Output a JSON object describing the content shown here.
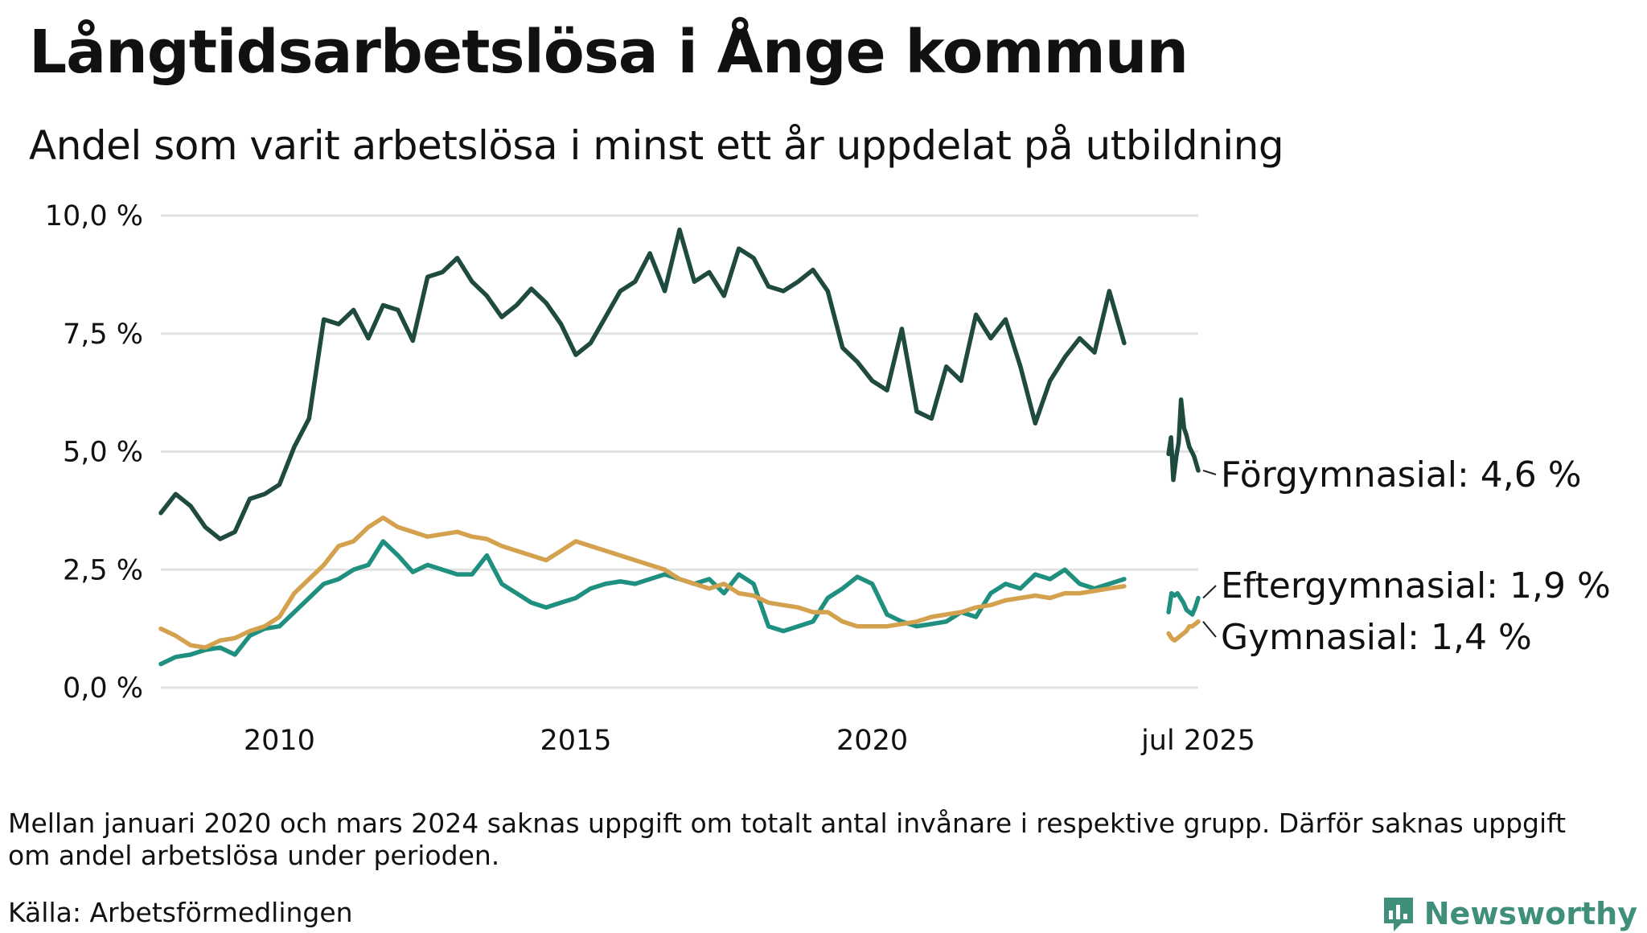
{
  "title": "Långtidsarbetslösa i Ånge kommun",
  "subtitle": "Andel som varit arbetslösa i minst ett år uppdelat på utbildning",
  "footnote": "Mellan januari 2020 och mars 2024 saknas uppgift om totalt antal invånare i respektive grupp. Därför saknas uppgift om andel arbetslösa under perioden.",
  "source": "Källa: Arbetsförmedlingen",
  "brand": "Newsworthy",
  "colors": {
    "forgymnasial": "#1f4a40",
    "eftergymnasial": "#1f9080",
    "gymnasial": "#d4a24e",
    "grid": "#e2e2e2",
    "brand": "#3f8f7a"
  },
  "chart_data": {
    "type": "line",
    "title": "Långtidsarbetslösa i Ånge kommun",
    "subtitle": "Andel som varit arbetslösa i minst ett år uppdelat på utbildning",
    "xlabel": "",
    "ylabel": "",
    "ylim": [
      0,
      10
    ],
    "xlim": [
      2008.0,
      2025.5
    ],
    "y_ticks": [
      {
        "value": 0,
        "label": "0,0 %"
      },
      {
        "value": 2.5,
        "label": "2,5 %"
      },
      {
        "value": 5,
        "label": "5,0 %"
      },
      {
        "value": 7.5,
        "label": "7,5 %"
      },
      {
        "value": 10,
        "label": "10,0 %"
      }
    ],
    "x_ticks": [
      {
        "value": 2010,
        "label": "2010"
      },
      {
        "value": 2015,
        "label": "2015"
      },
      {
        "value": 2020,
        "label": "2020"
      },
      {
        "value": 2025.5,
        "label": "jul 2025"
      }
    ],
    "grid": true,
    "legend": "end-of-line labels",
    "series": [
      {
        "name": "Förgymnasial",
        "end_label": "Förgymnasial: 4,6 %",
        "color": "#1f4a40",
        "segments": [
          [
            [
              2008.0,
              3.7
            ],
            [
              2008.25,
              4.1
            ],
            [
              2008.5,
              3.85
            ],
            [
              2008.75,
              3.4
            ],
            [
              2009.0,
              3.15
            ],
            [
              2009.25,
              3.3
            ],
            [
              2009.5,
              4.0
            ],
            [
              2009.75,
              4.1
            ],
            [
              2010.0,
              4.3
            ],
            [
              2010.25,
              5.1
            ],
            [
              2010.5,
              5.7
            ],
            [
              2010.75,
              7.8
            ],
            [
              2011.0,
              7.7
            ],
            [
              2011.25,
              8.0
            ],
            [
              2011.5,
              7.4
            ],
            [
              2011.75,
              8.1
            ],
            [
              2012.0,
              8.0
            ],
            [
              2012.25,
              7.35
            ],
            [
              2012.5,
              8.7
            ],
            [
              2012.75,
              8.8
            ],
            [
              2013.0,
              9.1
            ],
            [
              2013.25,
              8.6
            ],
            [
              2013.5,
              8.3
            ],
            [
              2013.75,
              7.85
            ],
            [
              2014.0,
              8.1
            ],
            [
              2014.25,
              8.45
            ],
            [
              2014.5,
              8.15
            ],
            [
              2014.75,
              7.7
            ],
            [
              2015.0,
              7.05
            ],
            [
              2015.25,
              7.3
            ],
            [
              2015.5,
              7.85
            ],
            [
              2015.75,
              8.4
            ],
            [
              2016.0,
              8.6
            ],
            [
              2016.25,
              9.2
            ],
            [
              2016.5,
              8.4
            ],
            [
              2016.75,
              9.7
            ],
            [
              2017.0,
              8.6
            ],
            [
              2017.25,
              8.8
            ],
            [
              2017.5,
              8.3
            ],
            [
              2017.75,
              9.3
            ],
            [
              2018.0,
              9.1
            ],
            [
              2018.25,
              8.5
            ],
            [
              2018.5,
              8.4
            ],
            [
              2018.75,
              8.6
            ],
            [
              2019.0,
              8.85
            ],
            [
              2019.25,
              8.4
            ],
            [
              2019.5,
              7.2
            ],
            [
              2019.75,
              6.9
            ],
            [
              2020.0,
              6.5
            ],
            [
              2020.25,
              6.3
            ],
            [
              2020.5,
              7.6
            ],
            [
              2020.75,
              5.85
            ],
            [
              2021.0,
              5.7
            ],
            [
              2021.25,
              6.8
            ],
            [
              2021.5,
              6.5
            ],
            [
              2021.75,
              7.9
            ],
            [
              2022.0,
              7.4
            ],
            [
              2022.25,
              7.8
            ],
            [
              2022.5,
              6.8
            ],
            [
              2022.75,
              5.6
            ],
            [
              2023.0,
              6.5
            ],
            [
              2023.25,
              7.0
            ],
            [
              2023.5,
              7.4
            ],
            [
              2023.75,
              7.1
            ],
            [
              2024.0,
              8.4
            ],
            [
              2024.25,
              7.3
            ]
          ],
          [
            [
              2025.0,
              4.95
            ],
            [
              2025.04,
              5.3
            ],
            [
              2025.08,
              4.4
            ],
            [
              2025.13,
              4.9
            ],
            [
              2025.17,
              5.2
            ],
            [
              2025.21,
              6.1
            ],
            [
              2025.26,
              5.5
            ],
            [
              2025.3,
              5.35
            ],
            [
              2025.35,
              5.1
            ],
            [
              2025.39,
              5.0
            ],
            [
              2025.43,
              4.9
            ],
            [
              2025.5,
              4.6
            ]
          ]
        ]
      },
      {
        "name": "Eftergymnasial",
        "end_label": "Eftergymnasial: 1,9 %",
        "color": "#1f9080",
        "segments": [
          [
            [
              2008.0,
              0.5
            ],
            [
              2008.25,
              0.65
            ],
            [
              2008.5,
              0.7
            ],
            [
              2008.75,
              0.8
            ],
            [
              2009.0,
              0.85
            ],
            [
              2009.25,
              0.7
            ],
            [
              2009.5,
              1.1
            ],
            [
              2009.75,
              1.25
            ],
            [
              2010.0,
              1.3
            ],
            [
              2010.25,
              1.6
            ],
            [
              2010.5,
              1.9
            ],
            [
              2010.75,
              2.2
            ],
            [
              2011.0,
              2.3
            ],
            [
              2011.25,
              2.5
            ],
            [
              2011.5,
              2.6
            ],
            [
              2011.75,
              3.1
            ],
            [
              2012.0,
              2.8
            ],
            [
              2012.25,
              2.45
            ],
            [
              2012.5,
              2.6
            ],
            [
              2012.75,
              2.5
            ],
            [
              2013.0,
              2.4
            ],
            [
              2013.25,
              2.4
            ],
            [
              2013.5,
              2.8
            ],
            [
              2013.75,
              2.2
            ],
            [
              2014.0,
              2.0
            ],
            [
              2014.25,
              1.8
            ],
            [
              2014.5,
              1.7
            ],
            [
              2014.75,
              1.8
            ],
            [
              2015.0,
              1.9
            ],
            [
              2015.25,
              2.1
            ],
            [
              2015.5,
              2.2
            ],
            [
              2015.75,
              2.25
            ],
            [
              2016.0,
              2.2
            ],
            [
              2016.25,
              2.3
            ],
            [
              2016.5,
              2.4
            ],
            [
              2016.75,
              2.3
            ],
            [
              2017.0,
              2.2
            ],
            [
              2017.25,
              2.3
            ],
            [
              2017.5,
              2.0
            ],
            [
              2017.75,
              2.4
            ],
            [
              2018.0,
              2.2
            ],
            [
              2018.25,
              1.3
            ],
            [
              2018.5,
              1.2
            ],
            [
              2018.75,
              1.3
            ],
            [
              2019.0,
              1.4
            ],
            [
              2019.25,
              1.9
            ],
            [
              2019.5,
              2.1
            ],
            [
              2019.75,
              2.35
            ],
            [
              2020.0,
              2.2
            ],
            [
              2020.25,
              1.55
            ],
            [
              2020.5,
              1.4
            ],
            [
              2020.75,
              1.3
            ],
            [
              2021.0,
              1.35
            ],
            [
              2021.25,
              1.4
            ],
            [
              2021.5,
              1.6
            ],
            [
              2021.75,
              1.5
            ],
            [
              2022.0,
              2.0
            ],
            [
              2022.25,
              2.2
            ],
            [
              2022.5,
              2.1
            ],
            [
              2022.75,
              2.4
            ],
            [
              2023.0,
              2.3
            ],
            [
              2023.25,
              2.5
            ],
            [
              2023.5,
              2.2
            ],
            [
              2023.75,
              2.1
            ],
            [
              2024.0,
              2.2
            ],
            [
              2024.25,
              2.3
            ]
          ],
          [
            [
              2025.0,
              1.6
            ],
            [
              2025.05,
              2.0
            ],
            [
              2025.1,
              1.95
            ],
            [
              2025.15,
              2.0
            ],
            [
              2025.2,
              1.9
            ],
            [
              2025.25,
              1.8
            ],
            [
              2025.3,
              1.65
            ],
            [
              2025.35,
              1.6
            ],
            [
              2025.4,
              1.55
            ],
            [
              2025.45,
              1.7
            ],
            [
              2025.5,
              1.9
            ]
          ]
        ]
      },
      {
        "name": "Gymnasial",
        "end_label": "Gymnasial: 1,4 %",
        "color": "#d4a24e",
        "segments": [
          [
            [
              2008.0,
              1.25
            ],
            [
              2008.25,
              1.1
            ],
            [
              2008.5,
              0.9
            ],
            [
              2008.75,
              0.85
            ],
            [
              2009.0,
              1.0
            ],
            [
              2009.25,
              1.05
            ],
            [
              2009.5,
              1.2
            ],
            [
              2009.75,
              1.3
            ],
            [
              2010.0,
              1.5
            ],
            [
              2010.25,
              2.0
            ],
            [
              2010.5,
              2.3
            ],
            [
              2010.75,
              2.6
            ],
            [
              2011.0,
              3.0
            ],
            [
              2011.25,
              3.1
            ],
            [
              2011.5,
              3.4
            ],
            [
              2011.75,
              3.6
            ],
            [
              2012.0,
              3.4
            ],
            [
              2012.25,
              3.3
            ],
            [
              2012.5,
              3.2
            ],
            [
              2012.75,
              3.25
            ],
            [
              2013.0,
              3.3
            ],
            [
              2013.25,
              3.2
            ],
            [
              2013.5,
              3.15
            ],
            [
              2013.75,
              3.0
            ],
            [
              2014.0,
              2.9
            ],
            [
              2014.25,
              2.8
            ],
            [
              2014.5,
              2.7
            ],
            [
              2014.75,
              2.9
            ],
            [
              2015.0,
              3.1
            ],
            [
              2015.25,
              3.0
            ],
            [
              2015.5,
              2.9
            ],
            [
              2015.75,
              2.8
            ],
            [
              2016.0,
              2.7
            ],
            [
              2016.25,
              2.6
            ],
            [
              2016.5,
              2.5
            ],
            [
              2016.75,
              2.3
            ],
            [
              2017.0,
              2.2
            ],
            [
              2017.25,
              2.1
            ],
            [
              2017.5,
              2.2
            ],
            [
              2017.75,
              2.0
            ],
            [
              2018.0,
              1.95
            ],
            [
              2018.25,
              1.8
            ],
            [
              2018.5,
              1.75
            ],
            [
              2018.75,
              1.7
            ],
            [
              2019.0,
              1.6
            ],
            [
              2019.25,
              1.6
            ],
            [
              2019.5,
              1.4
            ],
            [
              2019.75,
              1.3
            ],
            [
              2020.0,
              1.3
            ],
            [
              2020.25,
              1.3
            ],
            [
              2020.5,
              1.35
            ],
            [
              2020.75,
              1.4
            ],
            [
              2021.0,
              1.5
            ],
            [
              2021.25,
              1.55
            ],
            [
              2021.5,
              1.6
            ],
            [
              2021.75,
              1.7
            ],
            [
              2022.0,
              1.75
            ],
            [
              2022.25,
              1.85
            ],
            [
              2022.5,
              1.9
            ],
            [
              2022.75,
              1.95
            ],
            [
              2023.0,
              1.9
            ],
            [
              2023.25,
              2.0
            ],
            [
              2023.5,
              2.0
            ],
            [
              2023.75,
              2.05
            ],
            [
              2024.0,
              2.1
            ],
            [
              2024.25,
              2.15
            ]
          ],
          [
            [
              2025.0,
              1.15
            ],
            [
              2025.05,
              1.05
            ],
            [
              2025.1,
              1.0
            ],
            [
              2025.15,
              1.05
            ],
            [
              2025.2,
              1.1
            ],
            [
              2025.25,
              1.15
            ],
            [
              2025.3,
              1.2
            ],
            [
              2025.35,
              1.3
            ],
            [
              2025.4,
              1.3
            ],
            [
              2025.45,
              1.35
            ],
            [
              2025.5,
              1.4
            ]
          ]
        ]
      }
    ]
  }
}
